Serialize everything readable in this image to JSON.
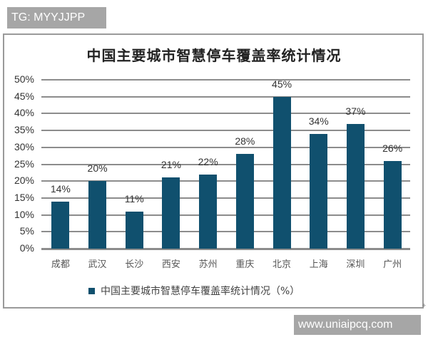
{
  "watermarks": {
    "top": "TG: MYYJJPP",
    "bottom": "www.uniaipcq.com"
  },
  "colors": {
    "bar": "#10506e",
    "grid": "#8c8c8c",
    "frame": "#9a9a9a",
    "watermark_bg": "#a6a6a6"
  },
  "chart_data": {
    "type": "bar",
    "title": "中国主要城市智慧停车覆盖率统计情况",
    "categories": [
      "成都",
      "武汉",
      "长沙",
      "西安",
      "苏州",
      "重庆",
      "北京",
      "上海",
      "深圳",
      "广州"
    ],
    "values": [
      14,
      20,
      11,
      21,
      22,
      28,
      45,
      34,
      37,
      26
    ],
    "value_labels": [
      "14%",
      "20%",
      "11%",
      "21%",
      "22%",
      "28%",
      "45%",
      "34%",
      "37%",
      "26%"
    ],
    "series": [
      {
        "name": "中国主要城市智慧停车覆盖率统计情况（%）",
        "values": [
          14,
          20,
          11,
          21,
          22,
          28,
          45,
          34,
          37,
          26
        ]
      }
    ],
    "xlabel": "",
    "ylabel": "",
    "ylim": [
      0,
      50
    ],
    "yticks": [
      "0%",
      "5%",
      "10%",
      "15%",
      "20%",
      "25%",
      "30%",
      "35%",
      "40%",
      "45%",
      "50%"
    ],
    "grid": true,
    "legend_position": "bottom",
    "legend": [
      "中国主要城市智慧停车覆盖率统计情况（%）"
    ]
  }
}
